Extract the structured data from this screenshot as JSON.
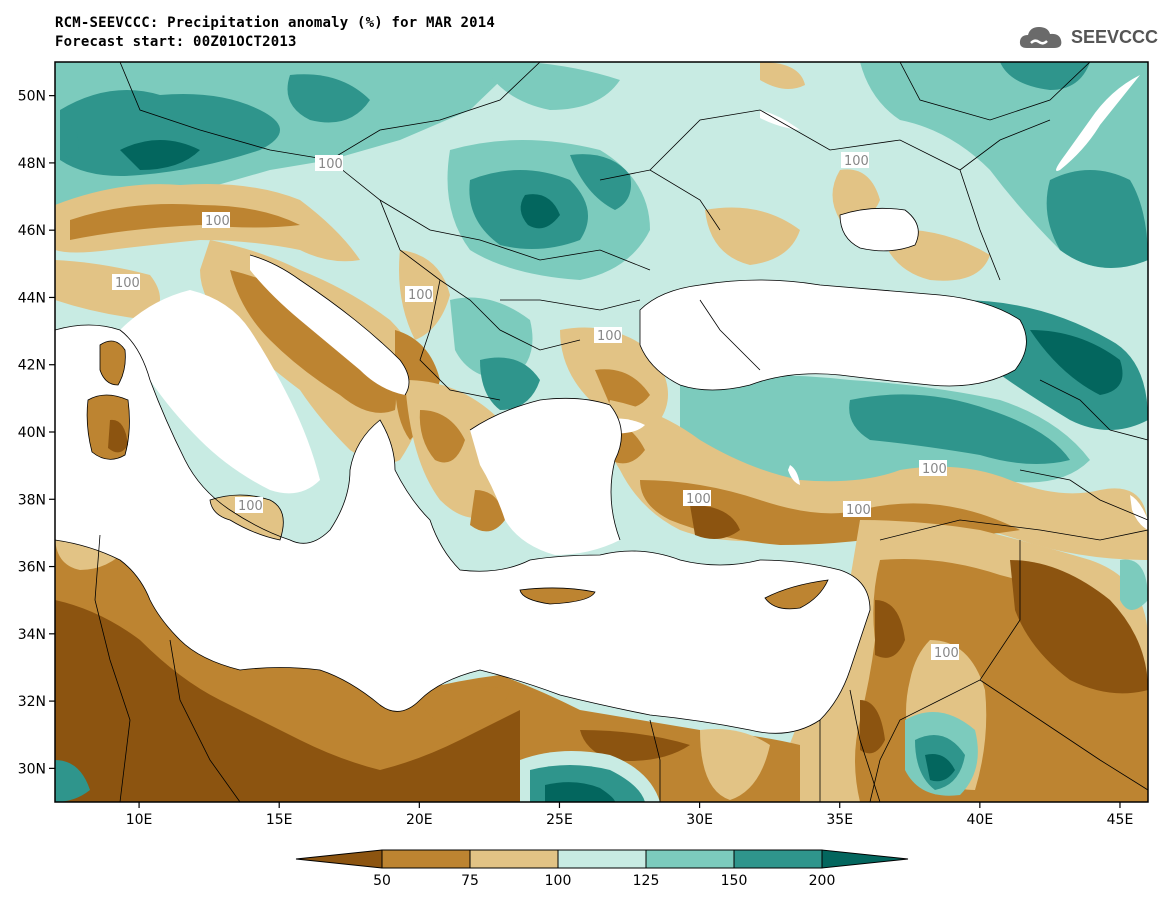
{
  "title": {
    "line1": "RCM-SEEVCCC: Precipitation anomaly (%) for MAR 2014",
    "line2": "Forecast start: 00Z01OCT2013"
  },
  "logo": {
    "text": "SEEVCCC",
    "icon": "cloud-icon"
  },
  "map": {
    "lon_range": [
      7,
      46
    ],
    "lat_range": [
      29,
      51
    ],
    "lat_ticks": [
      "50N",
      "48N",
      "46N",
      "44N",
      "42N",
      "40N",
      "38N",
      "36N",
      "34N",
      "32N",
      "30N"
    ],
    "lat_values": [
      50,
      48,
      46,
      44,
      42,
      40,
      38,
      36,
      34,
      32,
      30
    ],
    "lon_ticks": [
      "10E",
      "15E",
      "20E",
      "25E",
      "30E",
      "35E",
      "40E",
      "45E"
    ],
    "lon_values": [
      10,
      15,
      20,
      25,
      30,
      35,
      40,
      45
    ],
    "contour_labels": [
      "100",
      "100",
      "100",
      "100",
      "100",
      "100",
      "100",
      "100",
      "100",
      "100",
      "100"
    ],
    "land_outside_data_color": "#ffffff",
    "sea_color": "#ffffff"
  },
  "colorbar": {
    "levels": [
      "50",
      "75",
      "100",
      "125",
      "150",
      "200"
    ],
    "colors": [
      "#8c5410",
      "#bd8431",
      "#e2c385",
      "#c8ebe3",
      "#7ccbbd",
      "#2f958c",
      "#03665e"
    ]
  }
}
